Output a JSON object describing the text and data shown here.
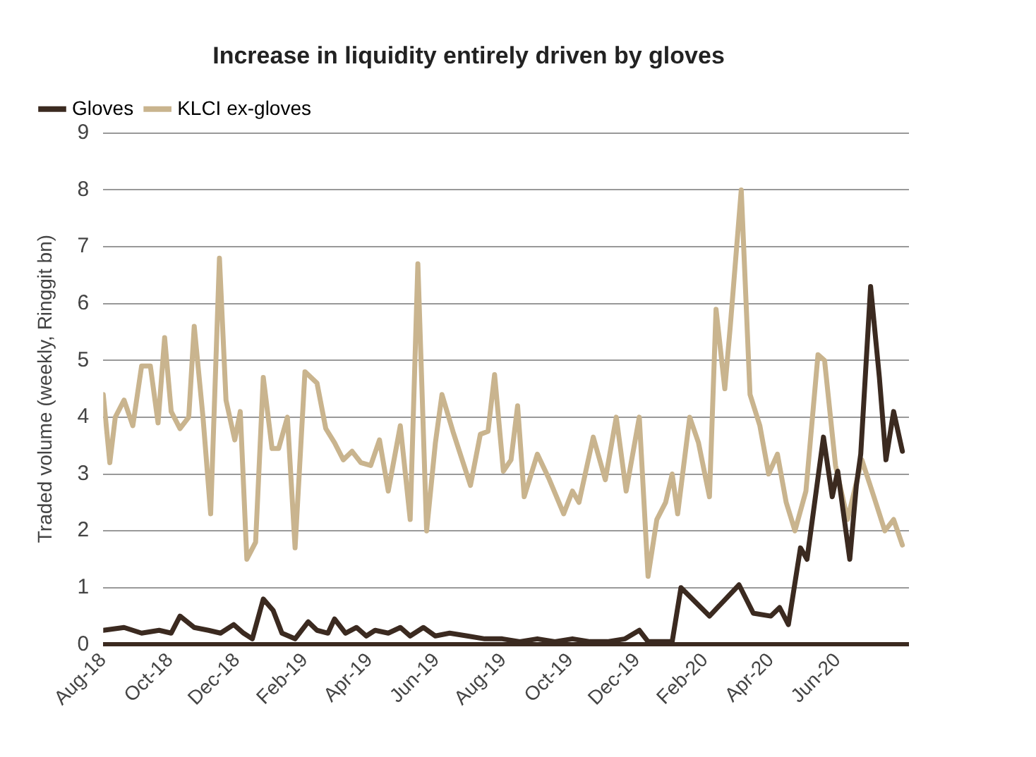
{
  "chart_data": {
    "type": "line",
    "title": "Increase in liquidity entirely driven by gloves",
    "ylabel": "Traded volume (weekly, Ringgit bn)",
    "xlim": [
      "2018-08-01",
      "2020-08-05"
    ],
    "xticks": [
      {
        "value": "2018-08-01",
        "label": "Aug-18"
      },
      {
        "value": "2018-10-01",
        "label": "Oct-18"
      },
      {
        "value": "2018-12-01",
        "label": "Dec-18"
      },
      {
        "value": "2019-02-01",
        "label": "Feb-19"
      },
      {
        "value": "2019-04-01",
        "label": "Apr-19"
      },
      {
        "value": "2019-06-01",
        "label": "Jun-19"
      },
      {
        "value": "2019-08-01",
        "label": "Aug-19"
      },
      {
        "value": "2019-10-01",
        "label": "Oct-19"
      },
      {
        "value": "2019-12-01",
        "label": "Dec-19"
      },
      {
        "value": "2020-02-01",
        "label": "Feb-20"
      },
      {
        "value": "2020-04-01",
        "label": "Apr-20"
      },
      {
        "value": "2020-06-01",
        "label": "Jun-20"
      }
    ],
    "ylim": [
      0,
      9
    ],
    "yticks": [
      0,
      1,
      2,
      3,
      4,
      5,
      6,
      7,
      8,
      9
    ],
    "grid": "y",
    "legend": "top left",
    "marker": "none",
    "line_style": "solid",
    "series": [
      {
        "name": "Gloves",
        "color": "#3b2a20",
        "x": [
          "2018-08-01",
          "2018-08-20",
          "2018-09-05",
          "2018-09-21",
          "2018-10-02",
          "2018-10-10",
          "2018-10-23",
          "2018-11-05",
          "2018-11-16",
          "2018-11-28",
          "2018-12-07",
          "2018-12-15",
          "2018-12-25",
          "2019-01-03",
          "2019-01-11",
          "2019-01-23",
          "2019-02-04",
          "2019-02-12",
          "2019-02-22",
          "2019-02-28",
          "2019-03-10",
          "2019-03-20",
          "2019-03-29",
          "2019-04-06",
          "2019-04-18",
          "2019-04-29",
          "2019-05-08",
          "2019-05-20",
          "2019-05-31",
          "2019-06-13",
          "2019-06-29",
          "2019-07-15",
          "2019-07-31",
          "2019-08-16",
          "2019-09-01",
          "2019-09-17",
          "2019-10-03",
          "2019-10-19",
          "2019-11-04",
          "2019-11-20",
          "2019-12-03",
          "2019-12-11",
          "2020-01-02",
          "2020-01-10",
          "2020-02-05",
          "2020-03-03",
          "2020-03-16",
          "2020-04-01",
          "2020-04-09",
          "2020-04-17",
          "2020-04-28",
          "2020-05-04",
          "2020-05-19",
          "2020-05-27",
          "2020-06-01",
          "2020-06-12",
          "2020-06-18",
          "2020-06-22",
          "2020-07-01",
          "2020-07-09",
          "2020-07-15",
          "2020-07-22",
          "2020-07-30"
        ],
        "values": [
          0.25,
          0.3,
          0.2,
          0.25,
          0.2,
          0.5,
          0.3,
          0.25,
          0.2,
          0.35,
          0.2,
          0.1,
          0.8,
          0.6,
          0.2,
          0.1,
          0.4,
          0.25,
          0.2,
          0.45,
          0.2,
          0.3,
          0.15,
          0.25,
          0.2,
          0.3,
          0.15,
          0.3,
          0.15,
          0.2,
          0.15,
          0.1,
          0.1,
          0.05,
          0.1,
          0.05,
          0.1,
          0.05,
          0.05,
          0.1,
          0.25,
          0.05,
          0.05,
          1.0,
          0.5,
          1.05,
          0.55,
          0.5,
          0.65,
          0.35,
          1.7,
          1.5,
          3.65,
          2.6,
          3.05,
          1.5,
          2.8,
          3.35,
          6.3,
          4.7,
          3.25,
          4.1,
          3.4
        ]
      },
      {
        "name": "KLCI ex-gloves",
        "color": "#c9b48e",
        "x": [
          "2018-08-01",
          "2018-08-07",
          "2018-08-12",
          "2018-08-20",
          "2018-08-28",
          "2018-09-05",
          "2018-09-13",
          "2018-09-20",
          "2018-09-26",
          "2018-10-02",
          "2018-10-10",
          "2018-10-18",
          "2018-10-23",
          "2018-10-31",
          "2018-11-07",
          "2018-11-15",
          "2018-11-21",
          "2018-11-29",
          "2018-12-04",
          "2018-12-10",
          "2018-12-18",
          "2018-12-25",
          "2019-01-02",
          "2019-01-08",
          "2019-01-16",
          "2019-01-23",
          "2019-02-01",
          "2019-02-12",
          "2019-02-20",
          "2019-02-28",
          "2019-03-08",
          "2019-03-16",
          "2019-03-24",
          "2019-04-02",
          "2019-04-10",
          "2019-04-18",
          "2019-04-29",
          "2019-05-08",
          "2019-05-15",
          "2019-05-23",
          "2019-05-31",
          "2019-06-06",
          "2019-06-16",
          "2019-07-02",
          "2019-07-11",
          "2019-07-18",
          "2019-07-24",
          "2019-08-01",
          "2019-08-08",
          "2019-08-14",
          "2019-08-20",
          "2019-09-01",
          "2019-09-12",
          "2019-09-25",
          "2019-10-03",
          "2019-10-09",
          "2019-10-22",
          "2019-11-02",
          "2019-11-12",
          "2019-11-21",
          "2019-12-03",
          "2019-12-11",
          "2019-12-19",
          "2019-12-27",
          "2020-01-02",
          "2020-01-07",
          "2020-01-18",
          "2020-01-26",
          "2020-02-05",
          "2020-02-11",
          "2020-02-19",
          "2020-02-24",
          "2020-03-05",
          "2020-03-13",
          "2020-03-22",
          "2020-03-30",
          "2020-04-07",
          "2020-04-15",
          "2020-04-23",
          "2020-05-03",
          "2020-05-14",
          "2020-05-20",
          "2020-05-30",
          "2020-06-10",
          "2020-06-23",
          "2020-07-04",
          "2020-07-14",
          "2020-07-22",
          "2020-07-30"
        ],
        "values": [
          4.4,
          3.2,
          4.0,
          4.3,
          3.85,
          4.9,
          4.9,
          3.9,
          5.4,
          4.1,
          3.8,
          4.0,
          5.6,
          4.0,
          2.3,
          6.8,
          4.3,
          3.6,
          4.1,
          1.5,
          1.8,
          4.7,
          3.45,
          3.45,
          4.0,
          1.7,
          4.8,
          4.6,
          3.8,
          3.55,
          3.25,
          3.4,
          3.2,
          3.15,
          3.6,
          2.7,
          3.85,
          2.2,
          6.7,
          2.0,
          3.55,
          4.4,
          3.75,
          2.8,
          3.7,
          3.75,
          4.75,
          3.05,
          3.25,
          4.2,
          2.6,
          3.35,
          2.9,
          2.3,
          2.7,
          2.5,
          3.65,
          2.9,
          4.0,
          2.7,
          4.0,
          1.2,
          2.2,
          2.5,
          3.0,
          2.3,
          4.0,
          3.55,
          2.6,
          5.9,
          4.5,
          5.6,
          8.0,
          4.4,
          3.85,
          3.0,
          3.35,
          2.5,
          2.0,
          2.7,
          5.1,
          5.0,
          3.15,
          2.2,
          3.25,
          2.6,
          2.0,
          2.2,
          1.75
        ]
      }
    ]
  }
}
